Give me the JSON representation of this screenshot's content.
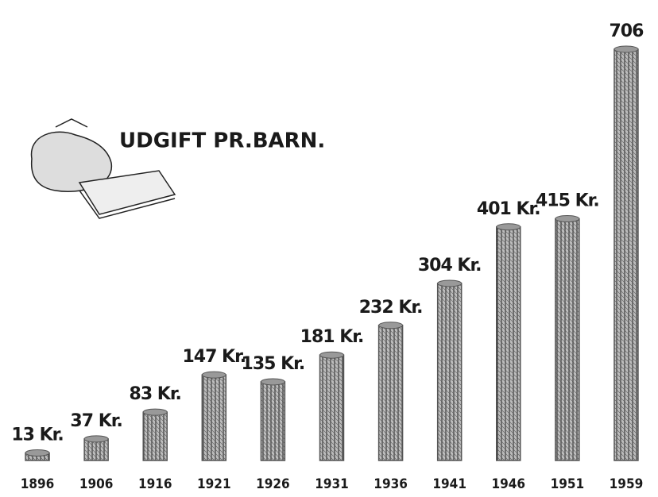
{
  "chart_data": {
    "type": "bar",
    "title": "UDGIFT PR.BARN.",
    "categories": [
      "1896",
      "1906",
      "1916",
      "1921",
      "1926",
      "1931",
      "1936",
      "1941",
      "1946",
      "1951",
      "1959"
    ],
    "values": [
      13,
      37,
      83,
      147,
      135,
      181,
      232,
      304,
      401,
      415,
      706
    ],
    "value_labels": [
      "13 Kr.",
      "37 Kr.",
      "83 Kr.",
      "147 Kr.",
      "135 Kr.",
      "181 Kr.",
      "232 Kr.",
      "304 Kr.",
      "401 Kr.",
      "415 Kr.",
      "706"
    ],
    "color": "#555555"
  }
}
